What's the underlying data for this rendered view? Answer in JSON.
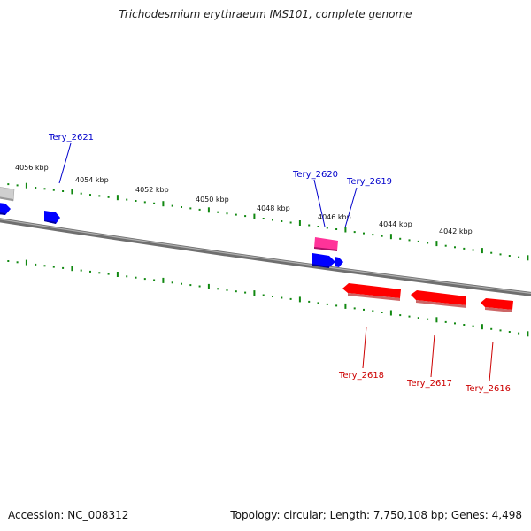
{
  "title": "Trichodesmium erythraeum IMS101, complete genome",
  "footer": {
    "accession": "Accession: NC_008312",
    "summary": "Topology: circular; Length: 7,750,108 bp; Genes: 4,498"
  },
  "scale_labels": [
    "4056 kbp",
    "4054 kbp",
    "4052 kbp",
    "4050 kbp",
    "4048 kbp",
    "4046 kbp",
    "4044 kbp",
    "4042 kbp"
  ],
  "genes": [
    {
      "label": "Tery_2621",
      "strand": "forward",
      "color": "#0000cc"
    },
    {
      "label": "Tery_2620",
      "strand": "forward",
      "color": "#cc0066"
    },
    {
      "label": "Tery_2619",
      "strand": "forward",
      "color": "#0000cc"
    },
    {
      "label": "Tery_2618",
      "strand": "reverse",
      "color": "#cc0000"
    },
    {
      "label": "Tery_2617",
      "strand": "reverse",
      "color": "#cc0000"
    },
    {
      "label": "Tery_2616",
      "strand": "reverse",
      "color": "#cc0000"
    }
  ],
  "colors": {
    "forward_gene": "#0000ff",
    "reverse_gene": "#ff0000",
    "rna_gene": "#ff3399",
    "scale_ticks": "#118811",
    "backbone": "#7a7a7a"
  }
}
